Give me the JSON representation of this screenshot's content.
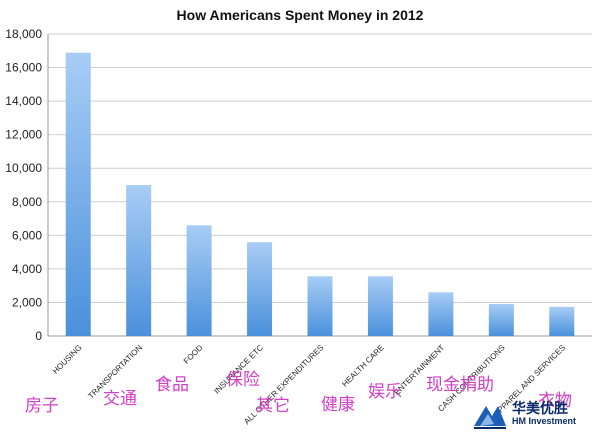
{
  "chart_data": {
    "type": "bar",
    "title": "How Americans Spent Money in 2012",
    "categories": [
      "Housing",
      "Transportation",
      "Food",
      "Insurance etc",
      "All other expenditures",
      "Health care",
      "Entertainment",
      "Cash contributions",
      "Apparel and services"
    ],
    "values": [
      16887,
      8998,
      6599,
      5591,
      3556,
      3556,
      2605,
      1913,
      1736
    ],
    "ylim": [
      0,
      18000
    ],
    "yticks": [
      "0",
      "2,000",
      "4,000",
      "6,000",
      "8,000",
      "10,000",
      "12,000",
      "14,000",
      "16,000",
      "18,000"
    ],
    "grid": true,
    "bar_color_top": "#a8cdf5",
    "bar_color_bottom": "#4a90dc",
    "annotations_cn": [
      "房子",
      "交通",
      "食品",
      "保险",
      "其它",
      "健康",
      "娱乐",
      "现金捐助",
      "衣物"
    ],
    "annotation_color": "#d23fc6"
  },
  "watermark": {
    "name_cn": "华美优胜",
    "name_en": "HM Investment",
    "color": "#0a2a6b"
  }
}
